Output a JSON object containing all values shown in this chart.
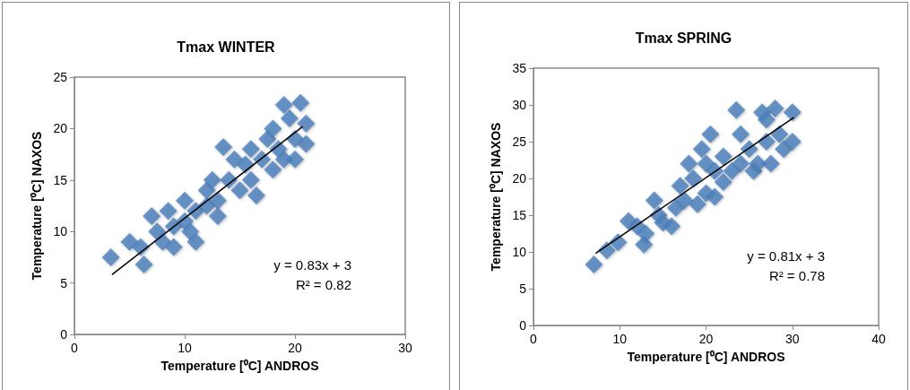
{
  "chart_data": [
    {
      "type": "scatter",
      "title": "Tmax WINTER",
      "xlabel": "Temperature [⁰C] ANDROS",
      "ylabel": "Temperature [⁰C] NAXOS",
      "xlim": [
        0,
        30
      ],
      "xticks": [
        0,
        10,
        20,
        30
      ],
      "ylim": [
        0,
        25
      ],
      "yticks": [
        0,
        5,
        10,
        15,
        20,
        25
      ],
      "marker": "diamond",
      "grid": false,
      "annotations": [
        "y = 0.83x + 3",
        "R² = 0.82"
      ],
      "series": [
        {
          "color": "#4a7ebb",
          "x": [
            3.3,
            5,
            6.3,
            6,
            7,
            7.5,
            8,
            8.5,
            9,
            9,
            10,
            10,
            10.5,
            11,
            11,
            12,
            12,
            12.5,
            13,
            13.5,
            13,
            14,
            14.5,
            15,
            15.5,
            16,
            16,
            16.5,
            17,
            17.5,
            18,
            18,
            18.5,
            19,
            19,
            19.5,
            20,
            20.5,
            21,
            20,
            21
          ],
          "values": [
            7.5,
            9,
            6.8,
            8.5,
            11.5,
            10,
            9,
            12,
            10.5,
            8.5,
            13,
            11,
            10,
            9,
            12,
            14,
            12.5,
            15,
            13,
            18.2,
            11.5,
            15,
            17,
            14,
            16.5,
            18,
            15,
            13.5,
            17,
            19,
            16,
            20,
            18,
            17,
            22.3,
            21,
            19,
            22.5,
            18.5,
            17,
            20.5
          ]
        },
        {
          "type": "line",
          "color": "#000000",
          "marker": "none",
          "x": [
            3.4,
            20.7
          ],
          "values": [
            5.8,
            20.2
          ]
        }
      ]
    },
    {
      "type": "scatter",
      "title": "Tmax SPRING",
      "xlabel": "Temperature [⁰C] ANDROS",
      "ylabel": "Temperature [⁰C] NAXOS",
      "xlim": [
        0,
        40
      ],
      "xticks": [
        0,
        10,
        20,
        30,
        40
      ],
      "ylim": [
        0,
        35
      ],
      "yticks": [
        0,
        5,
        10,
        15,
        20,
        25,
        30,
        35
      ],
      "marker": "diamond",
      "grid": false,
      "annotations": [
        "y = 0.81x + 3",
        "R² = 0.78"
      ],
      "series": [
        {
          "color": "#4a7ebb",
          "x": [
            7,
            8.5,
            9.8,
            11,
            12,
            12.8,
            13,
            14,
            14.5,
            15,
            16,
            16.5,
            17,
            17.5,
            18,
            18.5,
            19,
            19.5,
            20,
            20,
            20.5,
            21,
            21,
            22,
            22,
            23,
            23.5,
            24,
            24,
            25,
            25.5,
            26,
            26.5,
            27,
            27.5,
            28,
            28.5,
            29,
            30,
            30,
            27
          ],
          "values": [
            8.3,
            10.2,
            11.3,
            14.2,
            13.5,
            11,
            12.5,
            17,
            15,
            14,
            13.5,
            16,
            19,
            17,
            22,
            20,
            16.5,
            24,
            18,
            22,
            26,
            17.5,
            21,
            23,
            19.5,
            21,
            29.3,
            26,
            22,
            24,
            21,
            22,
            29,
            25,
            22,
            29.5,
            26,
            24,
            25,
            29,
            28
          ]
        },
        {
          "type": "line",
          "color": "#000000",
          "marker": "none",
          "x": [
            7.2,
            30.2
          ],
          "values": [
            9.8,
            28.3
          ]
        }
      ]
    }
  ]
}
